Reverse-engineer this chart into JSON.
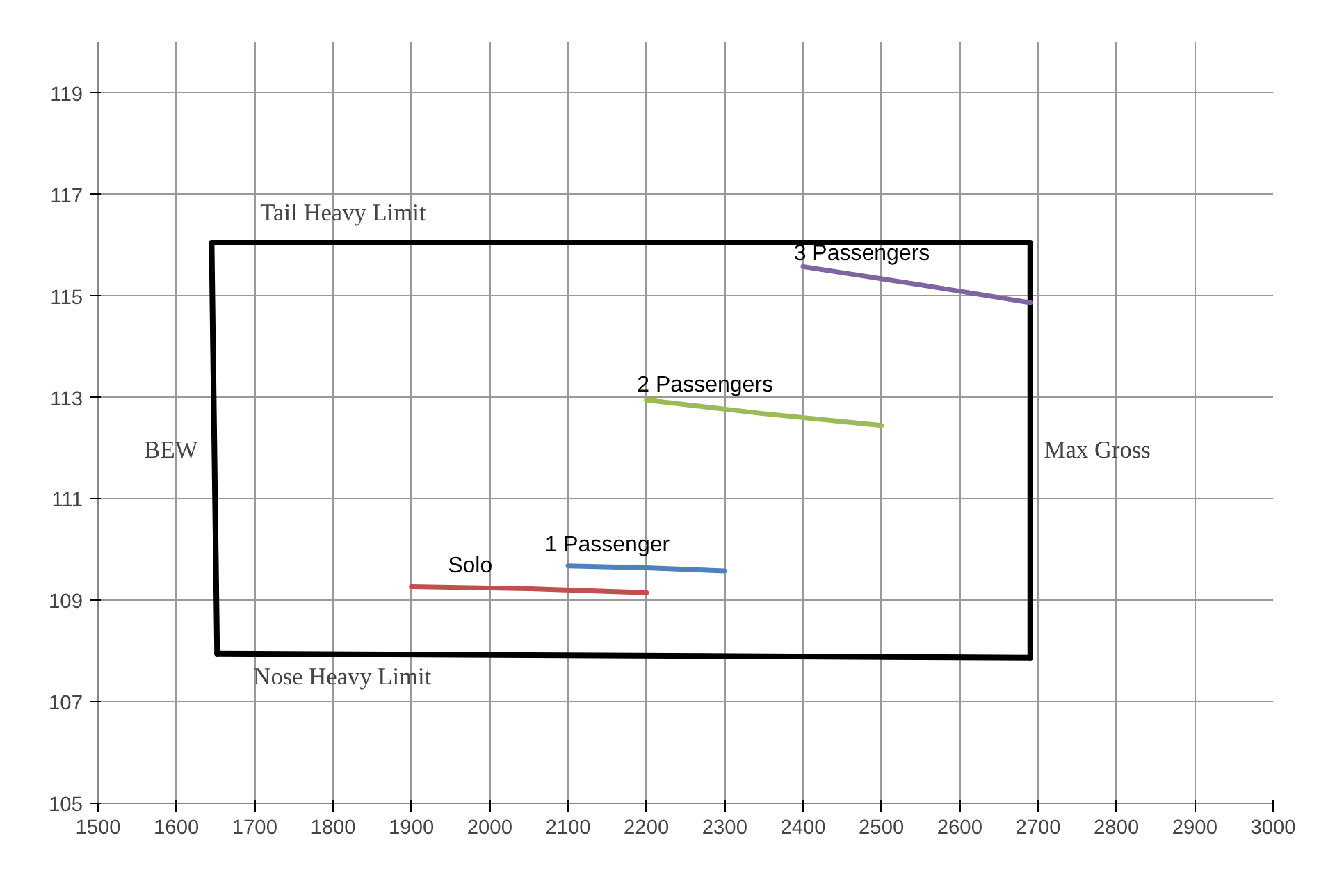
{
  "chart_data": {
    "type": "line",
    "xlim": [
      1500,
      3000
    ],
    "ylim": [
      105,
      120
    ],
    "xticks": [
      1500,
      1600,
      1700,
      1800,
      1900,
      2000,
      2100,
      2200,
      2300,
      2400,
      2500,
      2600,
      2700,
      2800,
      2900,
      3000
    ],
    "yticks": [
      105,
      107,
      109,
      111,
      113,
      115,
      117,
      119
    ],
    "grid": true,
    "marker": "none",
    "line_style": "solid",
    "series": [
      {
        "color": "#000000",
        "x": [
          1652,
          1645,
          2690,
          2690
        ],
        "values": [
          107.95,
          116.05,
          116.05,
          107.87
        ]
      },
      {
        "color": "#000000",
        "x": [
          1652,
          2690
        ],
        "values": [
          107.95,
          107.87
        ]
      },
      {
        "name": "Solo",
        "color": "#c0504d",
        "x": [
          1900,
          2050,
          2200
        ],
        "values": [
          109.27,
          109.23,
          109.15
        ]
      },
      {
        "name": "1 Passenger",
        "color": "#4f81bd",
        "x": [
          2100,
          2200,
          2300
        ],
        "values": [
          109.68,
          109.64,
          109.58
        ]
      },
      {
        "name": "2 Passengers",
        "color": "#9bbb59",
        "x": [
          2200,
          2350,
          2500
        ],
        "values": [
          112.95,
          112.68,
          112.45
        ]
      },
      {
        "name": "3 Passengers",
        "color": "#8064a2",
        "x": [
          2400,
          2550,
          2690
        ],
        "values": [
          115.58,
          115.22,
          114.87
        ]
      }
    ],
    "annotations": [
      "Tail Heavy Limit",
      "Nose Heavy Limit",
      "BEW",
      "Max Gross"
    ]
  }
}
